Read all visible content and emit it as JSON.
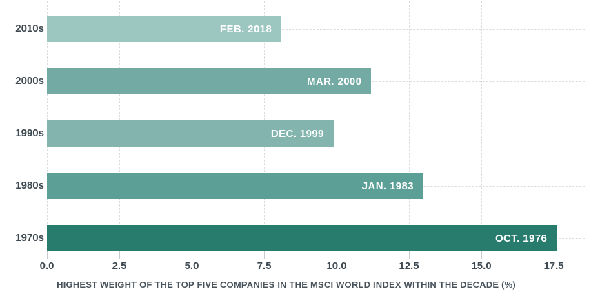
{
  "chart_data": {
    "type": "bar",
    "orientation": "horizontal",
    "title": "",
    "xlabel": "HIGHEST WEIGHT OF THE TOP FIVE COMPANIES IN THE MSCI WORLD INDEX WITHIN THE DECADE (%)",
    "ylabel": "",
    "categories": [
      "2010s",
      "2000s",
      "1990s",
      "1980s",
      "1970s"
    ],
    "values": [
      8.1,
      11.2,
      9.9,
      13.0,
      17.6
    ],
    "bar_labels": [
      "FEB. 2018",
      "MAR. 2000",
      "DEC. 1999",
      "JAN. 1983",
      "OCT. 1976"
    ],
    "bar_colors": [
      "#9cc6c0",
      "#73aba4",
      "#83b5ae",
      "#5c9f97",
      "#287c6e"
    ],
    "xticks": [
      0,
      2.5,
      5,
      7.5,
      10,
      12.5,
      15,
      17.5
    ],
    "xtick_labels": [
      "0.0",
      "2.5",
      "5.0",
      "7.5",
      "10.0",
      "12.5",
      "15.0",
      "17.5"
    ],
    "xlim": [
      0,
      18.57
    ],
    "grid": true,
    "grid_style": "dashed",
    "legend": false,
    "colors": {
      "text": "#3d4850",
      "caption": "#47525b",
      "gridline": "#dcdcdc",
      "tick": "#c6cbcb",
      "bar_label_text": "#ffffff",
      "background": "#ffffff"
    }
  }
}
